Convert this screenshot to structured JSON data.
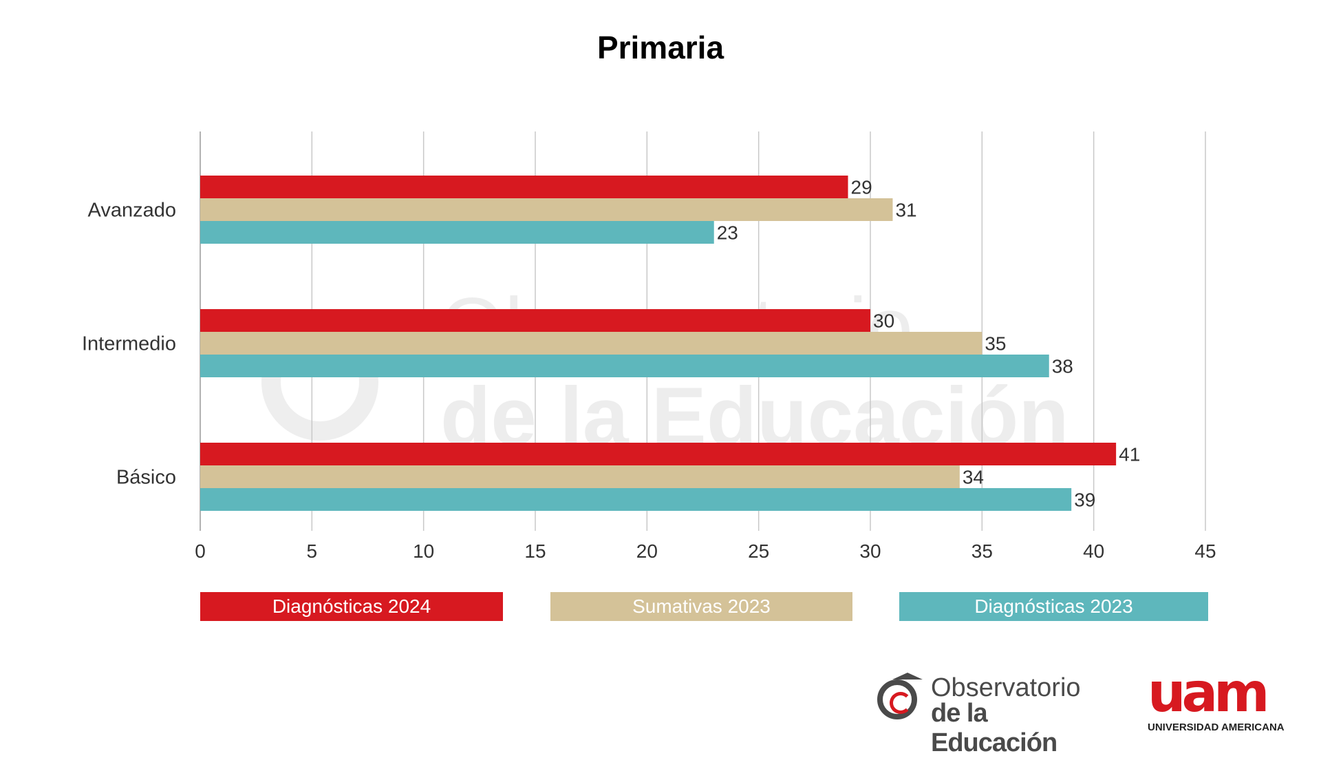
{
  "chart_data": {
    "type": "bar",
    "orientation": "horizontal",
    "title": "Primaria",
    "categories": [
      "Avanzado",
      "Intermedio",
      "Básico"
    ],
    "series": [
      {
        "name": "Diagnósticas 2024",
        "color": "#d71920",
        "values": [
          29,
          30,
          41
        ]
      },
      {
        "name": "Sumativas 2023",
        "color": "#d4c298",
        "values": [
          31,
          35,
          34
        ]
      },
      {
        "name": "Diagnósticas 2023",
        "color": "#5eb7bc",
        "values": [
          23,
          38,
          39
        ]
      }
    ],
    "xlim": [
      0,
      45
    ],
    "xticks": [
      "0",
      "5",
      "10",
      "15",
      "20",
      "25",
      "30",
      "35",
      "40",
      "45"
    ],
    "grid": true,
    "data_labels": true,
    "legend_position": "bottom"
  },
  "watermark": {
    "line1": "Observatorio",
    "line2": "de la Educación"
  },
  "logos": {
    "observatorio": {
      "line1": "Observatorio",
      "line2": "de la Educación"
    },
    "uam": {
      "mark": "uam",
      "name": "UNIVERSIDAD AMERICANA"
    }
  }
}
